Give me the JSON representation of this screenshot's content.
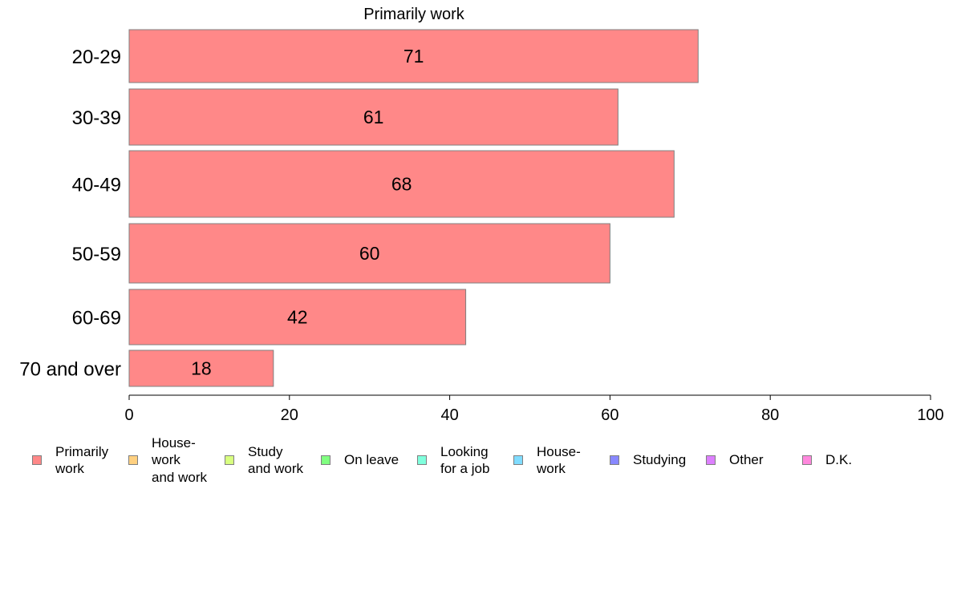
{
  "chart_data": {
    "type": "bar",
    "orientation": "horizontal",
    "title": "Primarily work",
    "categories": [
      "20-29",
      "30-39",
      "40-49",
      "50-59",
      "60-69",
      "70 and over"
    ],
    "series": [
      {
        "name": "Primarily work",
        "color": "#ff8888",
        "values": [
          71,
          61,
          68,
          60,
          42,
          18
        ]
      }
    ],
    "data_labels": [
      "71",
      "61",
      "68",
      "60",
      "42",
      "18"
    ],
    "xlim": [
      0,
      100
    ],
    "x_ticks": [
      0,
      20,
      40,
      60,
      80,
      100
    ],
    "x_tick_labels": [
      "0",
      "20",
      "40",
      "60",
      "80",
      "100"
    ],
    "xlabel": "",
    "ylabel": "",
    "grid": false,
    "legend_position": "bottom",
    "legend": [
      {
        "label": "Primarily\nwork",
        "color": "#ff8888"
      },
      {
        "label": "House-\nwork\nand work",
        "color": "#ffd080"
      },
      {
        "label": "Study\nand work",
        "color": "#d8ff80"
      },
      {
        "label": "On leave",
        "color": "#80ff80"
      },
      {
        "label": "Looking\nfor a job",
        "color": "#80ffdd"
      },
      {
        "label": "House-\nwork",
        "color": "#80dcff"
      },
      {
        "label": "Studying",
        "color": "#8888ff"
      },
      {
        "label": "Other",
        "color": "#dd80ff"
      },
      {
        "label": "D.K.",
        "color": "#ff88dd"
      }
    ]
  },
  "colors": {
    "bar_stroke": "#7f7f7f",
    "axis": "#000000"
  }
}
